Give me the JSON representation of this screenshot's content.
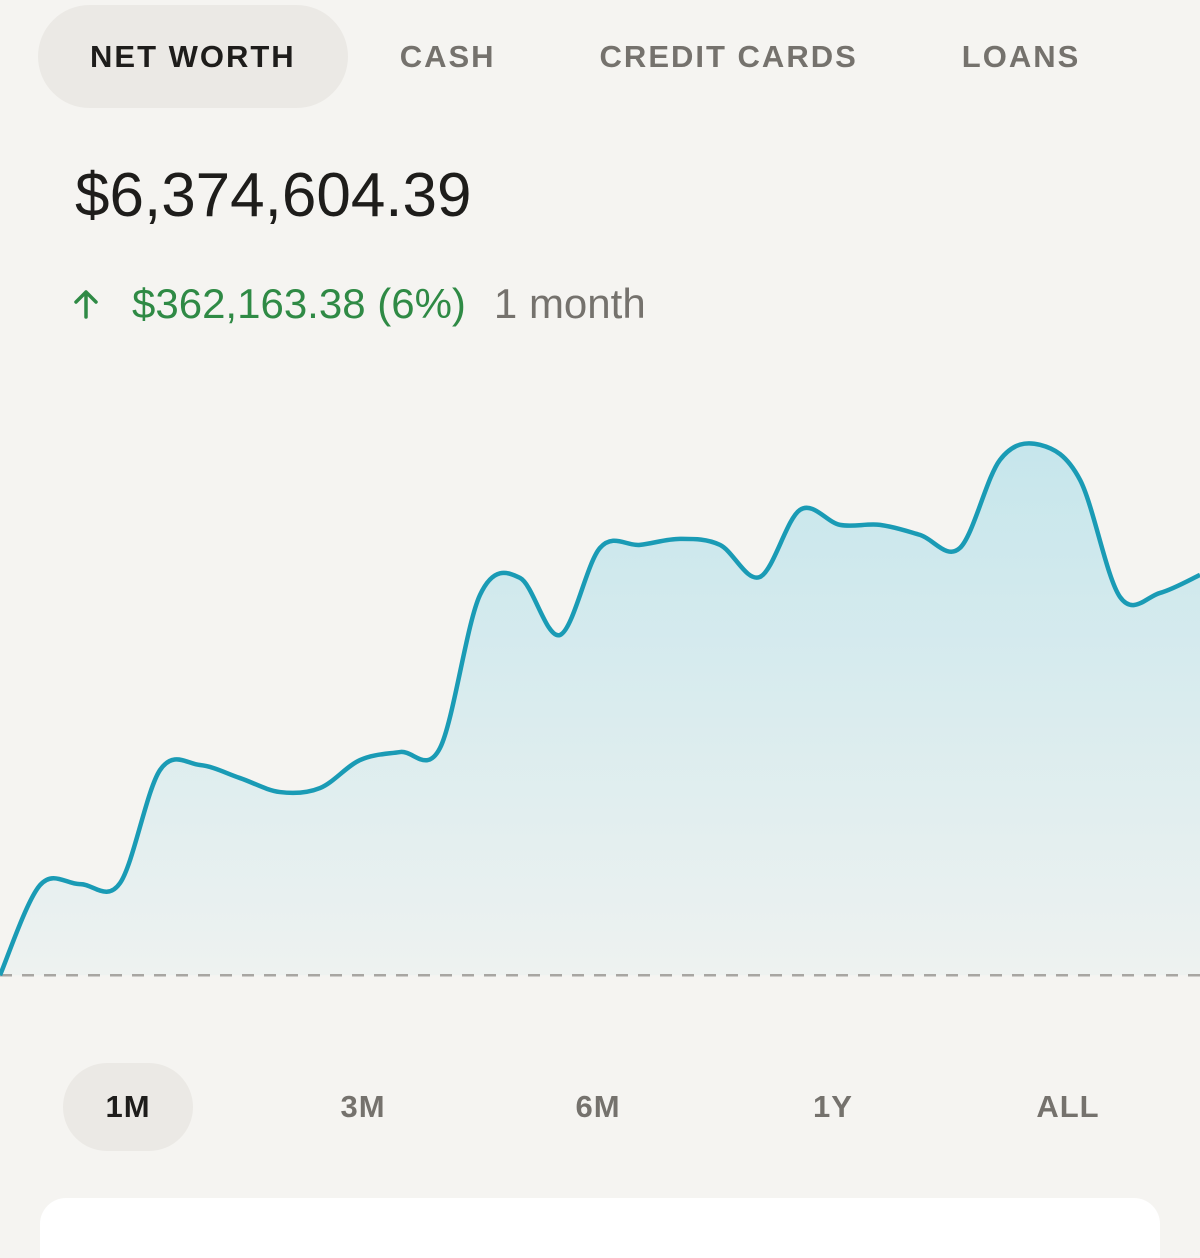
{
  "tabs": [
    "NET WORTH",
    "CASH",
    "CREDIT CARDS",
    "LOANS"
  ],
  "balance": "$6,374,604.39",
  "change": {
    "amount": "$362,163.38 (6%)",
    "period": "1 month"
  },
  "ranges": [
    "1M",
    "3M",
    "6M",
    "1Y",
    "ALL"
  ],
  "chart_data": {
    "type": "line",
    "color": "#1a9bb5",
    "values": [
      6012441,
      6093927,
      6094832,
      6095738,
      6198048,
      6202575,
      6190805,
      6178129,
      6181751,
      6207102,
      6214345,
      6217967,
      6356493,
      6371885,
      6320277,
      6399047,
      6401763,
      6407195,
      6401763,
      6372790,
      6433452,
      6419871,
      6419871,
      6410817,
      6399047,
      6478722,
      6492303,
      6460614,
      6354682,
      6358304,
      6374604.39
    ],
    "ylim": [
      5990000,
      6560000
    ]
  }
}
